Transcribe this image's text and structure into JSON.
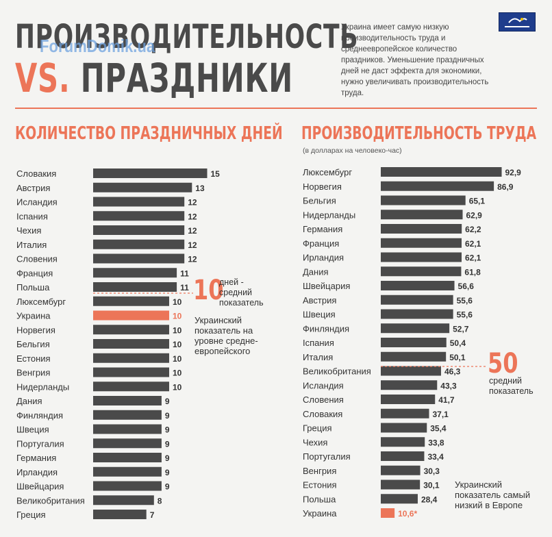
{
  "header": {
    "title_line1": "ПРОИЗВОДИТЕЛЬНОСТЬ",
    "title_vs": "VS.",
    "title_line2": "ПРАЗДНИКИ",
    "watermark": "ForumDomik.ua",
    "intro": "Украина имеет самую низкую производительность труда и среднеевропейское количество праздников. Уменьшение праздничных дней не даст эффекта для экономики, нужно увеличивать производительность труда."
  },
  "colors": {
    "bar": "#4a4a4a",
    "highlight": "#ec7558",
    "accent": "#ec7558",
    "text": "#333333"
  },
  "chart_data": [
    {
      "type": "bar",
      "orientation": "horizontal",
      "title": "КОЛИЧЕСТВО ПРАЗДНИЧНЫХ ДНЕЙ",
      "categories": [
        "Словакия",
        "Австрия",
        "Исландия",
        "Іспания",
        "Чехия",
        "Италия",
        "Словения",
        "Франция",
        "Польша",
        "Люксембург",
        "Украина",
        "Норвегия",
        "Бельгия",
        "Естония",
        "Венгрия",
        "Нидерланды",
        "Дания",
        "Финляндия",
        "Швеция",
        "Португалия",
        "Германия",
        "Ирландия",
        "Швейцария",
        "Великобритания",
        "Греция"
      ],
      "values": [
        15,
        13,
        12,
        12,
        12,
        12,
        12,
        11,
        11,
        10,
        10,
        10,
        10,
        10,
        10,
        10,
        9,
        9,
        9,
        9,
        9,
        9,
        9,
        8,
        7
      ],
      "value_labels": [
        "15",
        "13",
        "12",
        "12",
        "12",
        "12",
        "12",
        "11",
        "11",
        "10",
        "10",
        "10",
        "10",
        "10",
        "10",
        "10",
        "9",
        "9",
        "9",
        "9",
        "9",
        "9",
        "9",
        "8",
        "7"
      ],
      "highlight": "Украина",
      "average": {
        "value": 10,
        "number_label": "10",
        "label": "дней - средний показатель"
      },
      "note": "Украинский показатель на уровне средне-европейского"
    },
    {
      "type": "bar",
      "orientation": "horizontal",
      "title": "ПРОИЗВОДИТЕЛЬНОСТЬ ТРУДА",
      "subtitle": "(в долларах на человеко-час)",
      "categories": [
        "Люксембург",
        "Норвегия",
        "Бельгия",
        "Нидерланды",
        "Германия",
        "Франция",
        "Ирландия",
        "Дания",
        "Швейцария",
        "Австрия",
        "Швеция",
        "Финляндия",
        "Іспания",
        "Италия",
        "Великобритания",
        "Исландия",
        "Словения",
        "Словакия",
        "Греция",
        "Чехия",
        "Португалия",
        "Венгрия",
        "Естония",
        "Польша",
        "Украина"
      ],
      "values": [
        92.9,
        86.9,
        65.1,
        62.9,
        62.2,
        62.1,
        62.1,
        61.8,
        56.6,
        55.6,
        55.6,
        52.7,
        50.4,
        50.1,
        46.3,
        43.3,
        41.7,
        37.1,
        35.4,
        33.8,
        33.4,
        30.3,
        30.1,
        28.4,
        10.6
      ],
      "value_labels": [
        "92,9",
        "86,9",
        "65,1",
        "62,9",
        "62,2",
        "62,1",
        "62,1",
        "61,8",
        "56,6",
        "55,6",
        "55,6",
        "52,7",
        "50,4",
        "50,1",
        "46,3",
        "43,3",
        "41,7",
        "37,1",
        "35,4",
        "33,8",
        "33,4",
        "30,3",
        "30,1",
        "28,4",
        "10,6"
      ],
      "highlight": "Украина",
      "highlight_marker": "*",
      "average": {
        "value": 50,
        "number_label": "50",
        "label": "средний показатель"
      },
      "note": "Украинский показатель самый низкий в Европе"
    }
  ]
}
